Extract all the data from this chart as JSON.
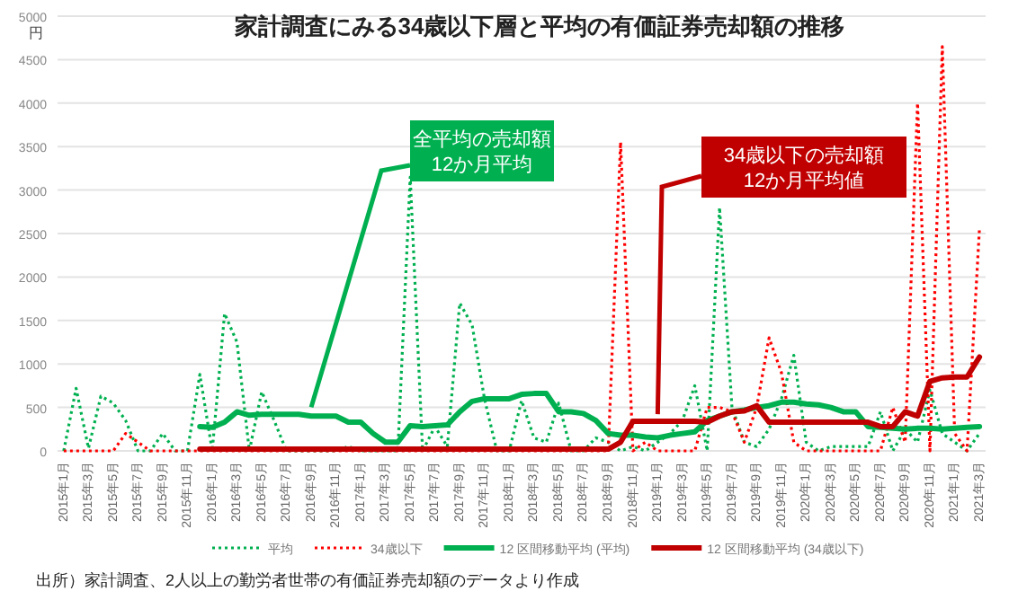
{
  "chart_data": {
    "type": "line",
    "title": "家計調査にみる34歳以下層と平均の有価証券売却額の推移",
    "ylabel": "円",
    "categories": [
      "2015年1月",
      null,
      "2015年3月",
      null,
      "2015年5月",
      null,
      "2015年7月",
      null,
      "2015年9月",
      null,
      "2015年11月",
      null,
      "2016年1月",
      null,
      "2016年3月",
      null,
      "2016年5月",
      null,
      "2016年7月",
      null,
      "2016年9月",
      null,
      "2016年11月",
      null,
      "2017年1月",
      null,
      "2017年3月",
      null,
      "2017年5月",
      null,
      "2017年7月",
      null,
      "2017年9月",
      null,
      "2017年11月",
      null,
      "2018年1月",
      null,
      "2018年3月",
      null,
      "2018年5月",
      null,
      "2018年7月",
      null,
      "2018年9月",
      null,
      "2018年11月",
      null,
      "2019年1月",
      null,
      "2019年3月",
      null,
      "2019年5月",
      null,
      "2019年7月",
      null,
      "2019年9月",
      null,
      "2019年11月",
      null,
      "2020年1月",
      null,
      "2020年3月",
      null,
      "2020年5月",
      null,
      "2020年7月",
      null,
      "2020年9月",
      null,
      "2020年11月",
      null,
      "2021年1月",
      null,
      "2021年3月"
    ],
    "series": [
      {
        "name": "平均",
        "color": "#00b050",
        "line_style": "dotted",
        "values": [
          0,
          720,
          30,
          630,
          550,
          350,
          0,
          0,
          200,
          0,
          0,
          880,
          0,
          1580,
          1250,
          0,
          680,
          350,
          0,
          0,
          0,
          0,
          0,
          50,
          0,
          0,
          0,
          0,
          3150,
          0,
          280,
          50,
          1700,
          1450,
          600,
          0,
          0,
          580,
          150,
          100,
          550,
          0,
          0,
          150,
          100,
          0,
          50,
          0,
          100,
          200,
          350,
          750,
          0,
          2800,
          500,
          100,
          50,
          250,
          600,
          1100,
          100,
          0,
          50,
          50,
          50,
          50,
          450,
          0,
          250,
          100,
          700,
          200,
          100,
          0,
          200
        ]
      },
      {
        "name": "34歳以下",
        "color": "#ff0000",
        "line_style": "dotted",
        "values": [
          0,
          0,
          0,
          0,
          0,
          200,
          100,
          0,
          0,
          0,
          0,
          0,
          0,
          0,
          0,
          0,
          0,
          0,
          0,
          0,
          0,
          0,
          0,
          0,
          0,
          0,
          0,
          0,
          0,
          0,
          0,
          0,
          0,
          0,
          0,
          0,
          0,
          0,
          0,
          0,
          0,
          0,
          0,
          0,
          0,
          3550,
          0,
          100,
          0,
          0,
          0,
          0,
          500,
          500,
          450,
          100,
          500,
          1300,
          900,
          100,
          0,
          0,
          0,
          0,
          0,
          0,
          0,
          500,
          100,
          4000,
          0,
          4650,
          200,
          0,
          2550
        ]
      },
      {
        "name": "12 区間移動平均 (平均)",
        "color": "#00b050",
        "line_style": "solid",
        "values": [
          null,
          null,
          null,
          null,
          null,
          null,
          null,
          null,
          null,
          null,
          null,
          280,
          270,
          330,
          450,
          410,
          420,
          420,
          420,
          420,
          400,
          400,
          400,
          330,
          330,
          200,
          100,
          100,
          290,
          280,
          290,
          300,
          450,
          570,
          600,
          600,
          600,
          650,
          660,
          660,
          450,
          450,
          430,
          350,
          200,
          180,
          180,
          160,
          150,
          180,
          200,
          220,
          350,
          400,
          450,
          470,
          500,
          520,
          560,
          560,
          540,
          530,
          500,
          450,
          450,
          280,
          270,
          260,
          250,
          260,
          260,
          250,
          260,
          270,
          280
        ]
      },
      {
        "name": "12 区間移動平均 (34歳以下)",
        "color": "#c00000",
        "line_style": "solid",
        "values": [
          null,
          null,
          null,
          null,
          null,
          null,
          null,
          null,
          null,
          null,
          null,
          20,
          20,
          20,
          20,
          20,
          20,
          20,
          20,
          20,
          20,
          20,
          20,
          20,
          20,
          20,
          20,
          20,
          20,
          20,
          20,
          20,
          20,
          20,
          20,
          20,
          20,
          20,
          20,
          20,
          20,
          20,
          20,
          20,
          20,
          100,
          340,
          340,
          340,
          340,
          340,
          340,
          330,
          400,
          450,
          460,
          520,
          330,
          330,
          330,
          330,
          330,
          330,
          330,
          330,
          330,
          280,
          280,
          450,
          400,
          800,
          840,
          850,
          850,
          1080
        ]
      }
    ],
    "ylim": [
      0,
      5000
    ],
    "yticks": [
      0,
      500,
      1000,
      1500,
      2000,
      2500,
      3000,
      3500,
      4000,
      4500,
      5000
    ],
    "grid": "y",
    "legend": "bottom",
    "annotations": [
      {
        "text": "全平均の売却額\n12か月平均",
        "x": "2016年9月",
        "y": 420
      },
      {
        "text": "34歳以下の売却額\n12か月平均値",
        "x": "2019年1月",
        "y": 340
      },
      "出所）家計調査、2人以上の勤労者世帯の有価証券売却額のデータより作成"
    ]
  }
}
